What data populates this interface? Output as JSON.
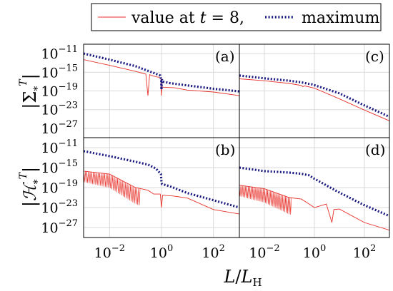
{
  "legend": {
    "items": [
      {
        "prefix": "value at ",
        "var": "t",
        "suffix": " = 8,",
        "color": "#e8312a",
        "style": "solid"
      },
      {
        "label": "maximum",
        "color": "#1a1a80",
        "style": "dotted"
      }
    ]
  },
  "xlabel": {
    "L": "L",
    "slash": "/",
    "LH": "L",
    "sub": "H"
  },
  "ylabels": {
    "top": {
      "abs": "|",
      "sym": "Σ",
      "sub": "*",
      "sup": "T"
    },
    "bottom": {
      "abs": "|",
      "sym": "ℋ",
      "sub": "*",
      "sup": "T"
    }
  },
  "chart_data": [
    {
      "type": "line",
      "panel": "(a)",
      "xscale": "log",
      "yscale": "log",
      "xlim": [
        0.001,
        1000
      ],
      "ylim": [
        1e-29,
        1e-09
      ],
      "grid": true,
      "yticks": [
        "10−11",
        "10−15",
        "10−19",
        "10−23",
        "10−27"
      ],
      "series": [
        {
          "name": "value at t = 8,",
          "x": [
            0.001,
            0.01,
            0.1,
            0.25,
            0.3,
            0.35,
            0.5,
            0.8,
            0.95,
            1.0,
            1.05,
            1.2,
            3,
            10,
            100,
            1000
          ],
          "y": [
            5e-13,
            3e-14,
            1.5e-15,
            4e-16,
            1e-20,
            3e-16,
            1.5e-16,
            8e-17,
            6e-17,
            1e-20,
            8e-19,
            6e-19,
            5e-19,
            1.5e-19,
            6e-20,
            1e-20
          ]
        },
        {
          "name": "maximum",
          "x": [
            0.001,
            0.01,
            0.1,
            0.3,
            0.6,
            0.9,
            0.97,
            1.0,
            1.03,
            1.1,
            2,
            10,
            100,
            1000
          ],
          "y": [
            1e-11,
            5e-13,
            2e-14,
            2e-15,
            5e-16,
            2e-16,
            3e-17,
            2e-19,
            3e-17,
            1e-17,
            5e-18,
            1.5e-18,
            3e-19,
            8e-20
          ]
        }
      ]
    },
    {
      "type": "line",
      "panel": "(b)",
      "xscale": "log",
      "yscale": "log",
      "xlim": [
        0.001,
        1000
      ],
      "ylim": [
        1e-29,
        1e-09
      ],
      "grid": true,
      "yticks": [
        "10−11",
        "10−15",
        "10−19",
        "10−23",
        "10−27"
      ],
      "xticks": [
        "10−2",
        "100",
        "102"
      ],
      "series": [
        {
          "name": "value at t = 8,",
          "x": [
            0.001,
            0.01,
            0.1,
            0.3,
            0.5,
            0.9,
            1.0,
            1.1,
            3,
            10,
            100,
            1000
          ],
          "y": [
            2e-16,
            5e-17,
            1e-19,
            3e-20,
            5e-21,
            5e-21,
            1e-23,
            3e-21,
            2e-21,
            8e-22,
            4e-24,
            5e-25
          ]
        },
        {
          "name": "maximum",
          "x": [
            0.001,
            0.01,
            0.1,
            0.3,
            0.6,
            0.95,
            1.0,
            1.05,
            2,
            10,
            100,
            1000
          ],
          "y": [
            2e-12,
            2e-13,
            1.5e-14,
            4e-15,
            7e-16,
            5e-17,
            1e-18,
            5e-19,
            2e-19,
            8e-21,
            3e-22,
            1e-23
          ]
        }
      ]
    },
    {
      "type": "line",
      "panel": "(c)",
      "xscale": "log",
      "yscale": "log",
      "xlim": [
        0.001,
        1000
      ],
      "ylim": [
        1e-29,
        1e-09
      ],
      "grid": true,
      "series": [
        {
          "name": "value at t = 8,",
          "x": [
            0.001,
            0.01,
            0.1,
            0.3,
            0.35,
            0.4,
            1,
            10,
            100,
            1000
          ],
          "y": [
            4e-17,
            1.5e-17,
            4e-18,
            1.5e-18,
            8e-19,
            1.2e-18,
            4e-19,
            2e-21,
            8e-24,
            4e-26
          ]
        },
        {
          "name": "maximum",
          "x": [
            0.001,
            0.01,
            0.1,
            0.3,
            0.5,
            0.8,
            10,
            100,
            1000
          ],
          "y": [
            2e-16,
            5e-17,
            1.5e-17,
            7e-18,
            4e-18,
            2.5e-18,
            3e-20,
            8e-23,
            3e-25
          ]
        }
      ]
    },
    {
      "type": "line",
      "panel": "(d)",
      "xscale": "log",
      "yscale": "log",
      "xlim": [
        0.001,
        1000
      ],
      "ylim": [
        1e-29,
        1e-09
      ],
      "grid": true,
      "xticks": [
        "10−2",
        "100",
        "102"
      ],
      "series": [
        {
          "name": "value at t = 8,",
          "x": [
            0.001,
            0.01,
            0.1,
            0.3,
            0.5,
            1,
            3,
            5,
            6,
            10,
            100,
            1000
          ],
          "y": [
            3e-19,
            6e-20,
            1e-21,
            5e-22,
            1e-22,
            1e-23,
            5e-23,
            1e-26,
            4e-24,
            5e-24,
            1e-26,
            3e-28
          ]
        },
        {
          "name": "maximum",
          "x": [
            0.001,
            0.01,
            0.1,
            0.3,
            0.6,
            1,
            10,
            100,
            1000
          ],
          "y": [
            1e-15,
            2e-16,
            1e-16,
            6e-17,
            3e-17,
            6e-18,
            1e-20,
            3e-23,
            2e-25
          ]
        }
      ]
    }
  ]
}
